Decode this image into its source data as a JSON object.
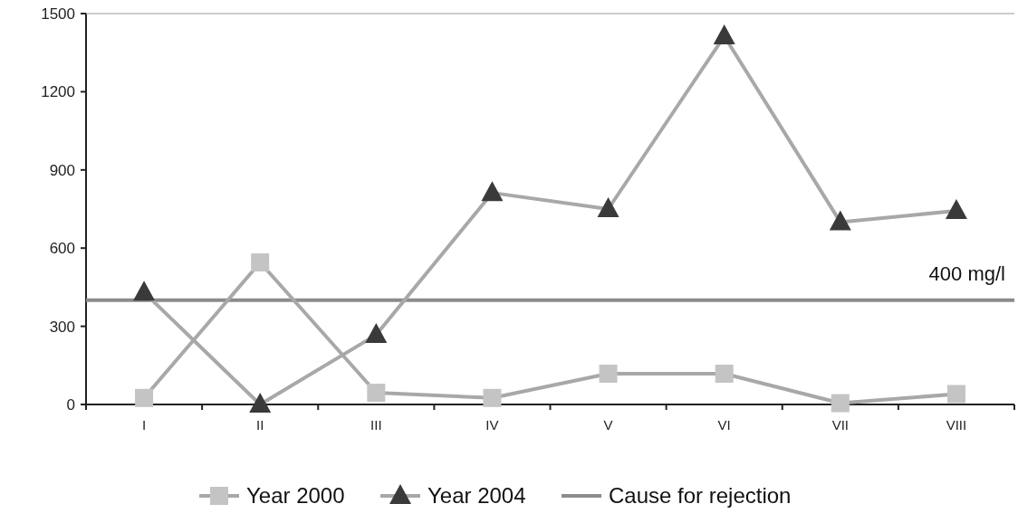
{
  "chart_data": {
    "type": "line",
    "categories": [
      "I",
      "II",
      "III",
      "IV",
      "V",
      "VI",
      "VII",
      "VIII"
    ],
    "series": [
      {
        "name": "Year 2000",
        "color": "#c4c4c4",
        "marker": "square",
        "values": [
          25,
          545,
          45,
          25,
          118,
          118,
          5,
          40
        ]
      },
      {
        "name": "Year 2004",
        "color": "#3a3a3a",
        "marker": "triangle",
        "values": [
          430,
          0,
          267,
          812,
          750,
          1413,
          700,
          743
        ]
      }
    ],
    "ylim": [
      0,
      1500
    ],
    "yticks": [
      0,
      300,
      600,
      900,
      1200,
      1500
    ],
    "grid": false,
    "legend": "bottom",
    "ref_lines": [
      {
        "axis": "y",
        "value": 400,
        "label": "Cause for rejection",
        "color": "#8c8c8c"
      }
    ],
    "annotations": [
      {
        "text": "400 mg/l",
        "y": 400
      }
    ]
  }
}
